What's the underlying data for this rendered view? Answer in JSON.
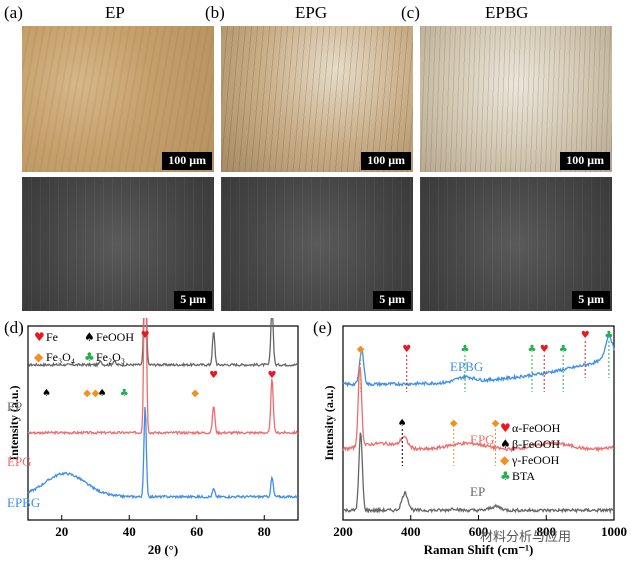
{
  "figure": {
    "panel_labels": [
      "(a)",
      "(b)",
      "(c)",
      "(d)",
      "(e)"
    ],
    "column_titles": [
      "EP",
      "EPG",
      "EPBG"
    ],
    "scale_bars": {
      "optical": "100 μm",
      "sem": "5 μm"
    }
  },
  "chart_data": [
    {
      "type": "line",
      "panel": "(d)",
      "xlabel": "2θ (°)",
      "ylabel": "Intensity (a.u.)",
      "xlim": [
        10,
        90
      ],
      "xticks": [
        20,
        40,
        60,
        80
      ],
      "legend": [
        {
          "symbol": "♥",
          "name": "Fe",
          "color": "#e8191f"
        },
        {
          "symbol": "♠",
          "name": "FeOOH",
          "color": "#000000"
        },
        {
          "symbol": "◆",
          "name": "Fe₃O₄",
          "color": "#f29020"
        },
        {
          "symbol": "♣",
          "name": "Fe₂O₃",
          "color": "#21b04b"
        }
      ],
      "series": [
        {
          "name": "EP",
          "color": "#666666",
          "baseline": 0.8,
          "peaks": [
            [
              44.7,
              0.55
            ],
            [
              65.0,
              0.17
            ],
            [
              82.3,
              0.3
            ],
            [
              31.5,
              0.02
            ],
            [
              35.5,
              0.02
            ]
          ]
        },
        {
          "name": "EPG",
          "color": "#f06b6b",
          "baseline": 0.45,
          "peaks": [
            [
              44.7,
              1.02
            ],
            [
              65.0,
              0.14
            ],
            [
              82.3,
              0.28
            ]
          ]
        },
        {
          "name": "EPBG",
          "color": "#3d8fe8",
          "baseline": 0.12,
          "hump": [
            21,
            0.12,
            6
          ],
          "peaks": [
            [
              44.7,
              0.46
            ],
            [
              65.0,
              0.04
            ],
            [
              82.3,
              0.1
            ]
          ]
        }
      ],
      "markers": [
        {
          "symbol": "♠",
          "x": 15.5,
          "color": "#000000",
          "on": "EP"
        },
        {
          "symbol": "◆",
          "x": 27.5,
          "color": "#f29020",
          "on": "EP"
        },
        {
          "symbol": "◆",
          "x": 30.0,
          "color": "#f29020",
          "on": "EP"
        },
        {
          "symbol": "♠",
          "x": 32.0,
          "color": "#000000",
          "on": "EP"
        },
        {
          "symbol": "♣",
          "x": 38.5,
          "color": "#21b04b",
          "on": "EP"
        },
        {
          "symbol": "♥",
          "x": 44.7,
          "color": "#e8191f",
          "on": "EP"
        },
        {
          "symbol": "◆",
          "x": 59.5,
          "color": "#f29020",
          "on": "EP"
        },
        {
          "symbol": "♥",
          "x": 65.0,
          "color": "#e8191f",
          "on": "EP"
        },
        {
          "symbol": "♥",
          "x": 82.3,
          "color": "#e8191f",
          "on": "EP"
        }
      ]
    },
    {
      "type": "line",
      "panel": "(e)",
      "xlabel": "Raman Shift (cm⁻¹)",
      "ylabel": "Intensity (a.u.)",
      "xlim": [
        200,
        1000
      ],
      "xticks": [
        200,
        400,
        600,
        800,
        1000
      ],
      "xtick_labels": [
        "200",
        "400",
        "600",
        "800",
        "1000"
      ],
      "legend": [
        {
          "symbol": "♥",
          "name": "α-FeOOH",
          "color": "#e8191f"
        },
        {
          "symbol": "♠",
          "name": "β-FeOOH",
          "color": "#000000"
        },
        {
          "symbol": "◆",
          "name": "γ-FeOOH",
          "color": "#f29020"
        },
        {
          "symbol": "♣",
          "name": "BTA",
          "color": "#21b04b"
        }
      ],
      "series": [
        {
          "name": "EPBG",
          "color": "#3d8fe8",
          "baseline": 0.7
        },
        {
          "name": "EPG",
          "color": "#f06b6b",
          "baseline": 0.38
        },
        {
          "name": "EP",
          "color": "#666666",
          "baseline": 0.05
        }
      ],
      "markers": [
        {
          "symbol": "◆",
          "x": 252,
          "color": "#f29020"
        },
        {
          "symbol": "♥",
          "x": 388,
          "color": "#e8191f"
        },
        {
          "symbol": "♣",
          "x": 560,
          "color": "#21b04b"
        },
        {
          "symbol": "♣",
          "x": 758,
          "color": "#21b04b"
        },
        {
          "symbol": "♥",
          "x": 794,
          "color": "#e8191f"
        },
        {
          "symbol": "♣",
          "x": 850,
          "color": "#21b04b"
        },
        {
          "symbol": "♥",
          "x": 915,
          "color": "#e8191f"
        },
        {
          "symbol": "♣",
          "x": 985,
          "color": "#21b04b"
        },
        {
          "symbol": "♠",
          "x": 375,
          "color": "#000000"
        },
        {
          "symbol": "◆",
          "x": 527,
          "color": "#f29020"
        },
        {
          "symbol": "◆",
          "x": 650,
          "color": "#f29020"
        }
      ]
    }
  ],
  "watermark": "材料分析与应用"
}
